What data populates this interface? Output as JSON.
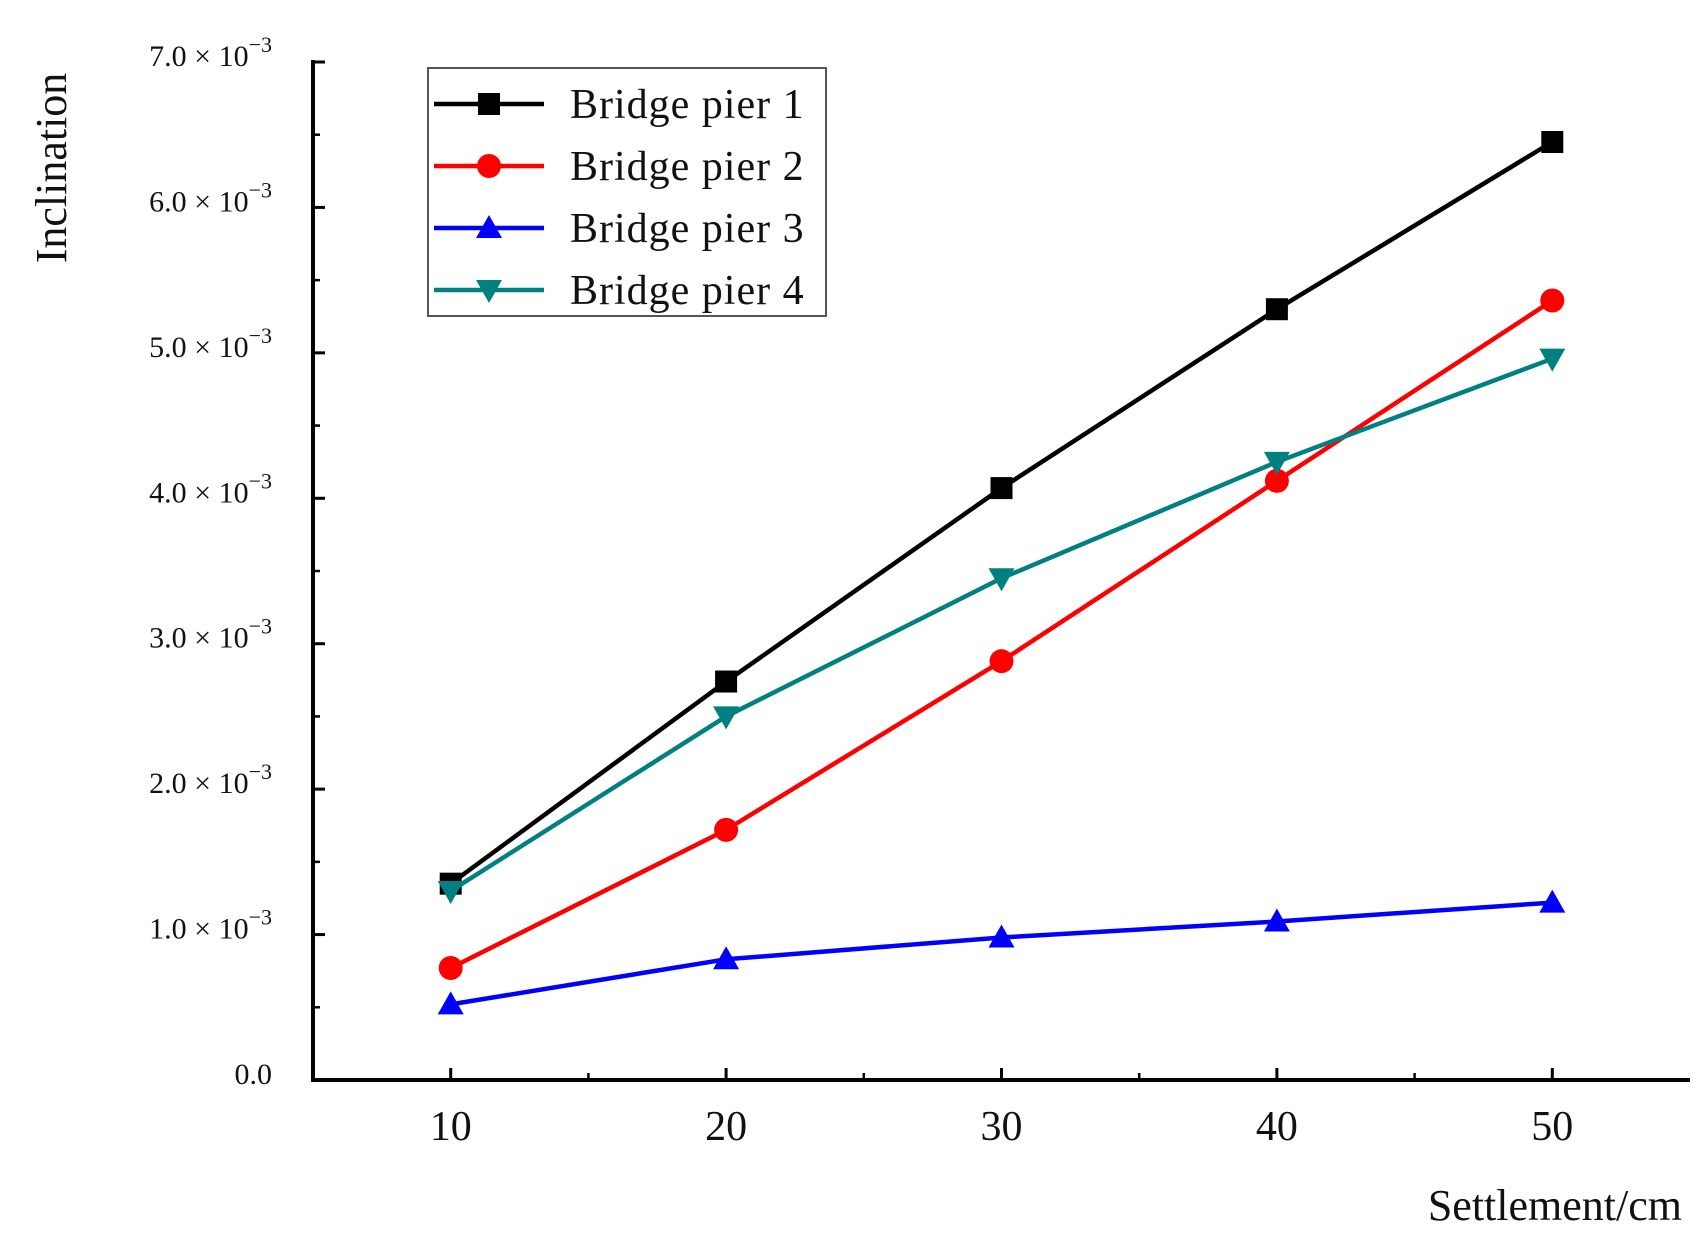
{
  "chart_data": {
    "type": "line",
    "title": "",
    "xlabel": "Settlement/cm",
    "ylabel": "Inclination",
    "x": [
      10,
      20,
      30,
      40,
      50
    ],
    "xlim": [
      5,
      55
    ],
    "ylim": [
      0,
      0.007
    ],
    "x_ticks": [
      {
        "value": 10,
        "label": "10"
      },
      {
        "value": 20,
        "label": "20"
      },
      {
        "value": 30,
        "label": "30"
      },
      {
        "value": 40,
        "label": "40"
      },
      {
        "value": 50,
        "label": "50"
      }
    ],
    "y_ticks": [
      {
        "value": 0,
        "label": "0.0",
        "exp": ""
      },
      {
        "value": 0.001,
        "label": "1.0 × 10",
        "exp": "−3"
      },
      {
        "value": 0.002,
        "label": "2.0 × 10",
        "exp": "−3"
      },
      {
        "value": 0.003,
        "label": "3.0 × 10",
        "exp": "−3"
      },
      {
        "value": 0.004,
        "label": "4.0 × 10",
        "exp": "−3"
      },
      {
        "value": 0.005,
        "label": "5.0 × 10",
        "exp": "−3"
      },
      {
        "value": 0.006,
        "label": "6.0 × 10",
        "exp": "−3"
      },
      {
        "value": 0.007,
        "label": "7.0 × 10",
        "exp": "−3"
      }
    ],
    "grid": false,
    "legend_position": "top-left",
    "series": [
      {
        "name": "Bridge pier 1",
        "color": "#000000",
        "marker": "square",
        "values": [
          0.00135,
          0.00274,
          0.00407,
          0.0053,
          0.00645
        ]
      },
      {
        "name": "Bridge pier 2",
        "color": "#ff0000",
        "marker": "circle",
        "values": [
          0.00077,
          0.00172,
          0.00288,
          0.00412,
          0.00536
        ]
      },
      {
        "name": "Bridge pier 3",
        "color": "#0000ff",
        "marker": "triangle-up",
        "values": [
          0.00052,
          0.00083,
          0.00098,
          0.00109,
          0.00122
        ]
      },
      {
        "name": "Bridge pier 4",
        "color": "#008080",
        "marker": "triangle-down",
        "values": [
          0.0013,
          0.0025,
          0.00345,
          0.00425,
          0.00496
        ]
      }
    ]
  }
}
